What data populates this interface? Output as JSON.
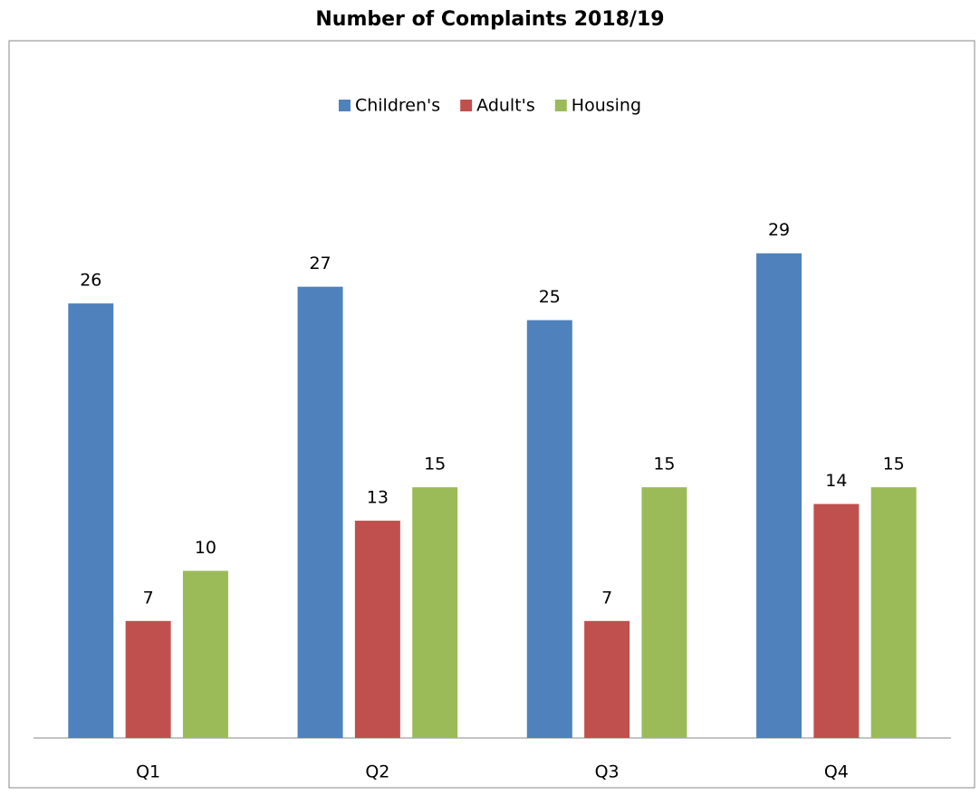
{
  "chart_data": {
    "type": "bar",
    "title": "Number of Complaints 2018/19",
    "categories": [
      "Q1",
      "Q2",
      "Q3",
      "Q4"
    ],
    "series": [
      {
        "name": "Children's",
        "color": "#4f81bd",
        "values": [
          26,
          27,
          25,
          29
        ]
      },
      {
        "name": "Adult's",
        "color": "#c0504d",
        "values": [
          7,
          13,
          7,
          14
        ]
      },
      {
        "name": "Housing",
        "color": "#9bbb59",
        "values": [
          10,
          15,
          15,
          15
        ]
      }
    ],
    "ylim": [
      0,
      35
    ],
    "legend": "top"
  }
}
